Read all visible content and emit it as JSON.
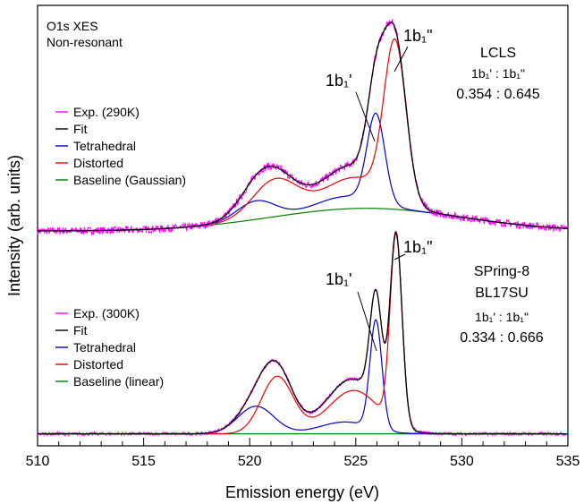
{
  "chart_data": {
    "type": "line",
    "xlabel": "Emission energy (eV)",
    "ylabel": "Intensity (arb. units)",
    "xlim": [
      510,
      535
    ],
    "x_ticks": [
      "510",
      "515",
      "520",
      "525",
      "530",
      "535"
    ],
    "x_minor_step": 1,
    "grid": false,
    "colors": {
      "exp": "#ff00ff",
      "fit": "#000000",
      "tetrahedral": "#0000cc",
      "distorted": "#ee0000",
      "baseline": "#008000"
    },
    "panels": [
      {
        "id": "top",
        "ylim": [
          0,
          1.0
        ],
        "corner_label_1": "O1s XES",
        "corner_label_2": "Non-resonant",
        "facility_1": "LCLS",
        "facility_2": "",
        "ratio_label": "1b₁' : 1b₁\"",
        "ratio_values": "0.354 : 0.645",
        "peak_label_1": "1b₁'",
        "peak_label_2": "1b₁\"",
        "legend_position": "middle-left",
        "legend": [
          "Exp. (290K)",
          "Fit",
          "Tetrahedral",
          "Distorted",
          "Baseline (Gaussian)"
        ],
        "components": {
          "tetrahedral": [
            {
              "center": 520.3,
              "height": 0.09,
              "width": 0.9
            },
            {
              "center": 524.5,
              "height": 0.06,
              "width": 1.3
            },
            {
              "center": 525.95,
              "height": 0.43,
              "width": 0.42
            }
          ],
          "distorted": [
            {
              "center": 521.2,
              "height": 0.18,
              "width": 1.05
            },
            {
              "center": 524.9,
              "height": 0.15,
              "width": 1.4
            },
            {
              "center": 526.85,
              "height": 0.77,
              "width": 0.52
            }
          ],
          "baseline": {
            "type": "gaussian",
            "center": 525.5,
            "height": 0.11,
            "width": 4.5
          }
        }
      },
      {
        "id": "bottom",
        "ylim": [
          0,
          1.0
        ],
        "corner_label_1": "",
        "corner_label_2": "",
        "facility_1": "SPring-8",
        "facility_2": "BL17SU",
        "ratio_label": "1b₁' : 1b₁\"",
        "ratio_values": "0.334 : 0.666",
        "peak_label_1": "1b₁'",
        "peak_label_2": "1b₁\"",
        "legend_position": "middle-left",
        "legend": [
          "Exp. (300K)",
          "Fit",
          "Tetrahedral",
          "Distorted",
          "Baseline (linear)"
        ],
        "components": {
          "tetrahedral": [
            {
              "center": 520.3,
              "height": 0.14,
              "width": 0.85
            },
            {
              "center": 524.5,
              "height": 0.06,
              "width": 1.2
            },
            {
              "center": 525.95,
              "height": 0.55,
              "width": 0.28
            }
          ],
          "distorted": [
            {
              "center": 521.3,
              "height": 0.29,
              "width": 0.75
            },
            {
              "center": 524.9,
              "height": 0.22,
              "width": 1.2
            },
            {
              "center": 526.9,
              "height": 0.96,
              "width": 0.28
            }
          ],
          "baseline": {
            "type": "linear",
            "value": 0.02
          }
        }
      }
    ]
  }
}
